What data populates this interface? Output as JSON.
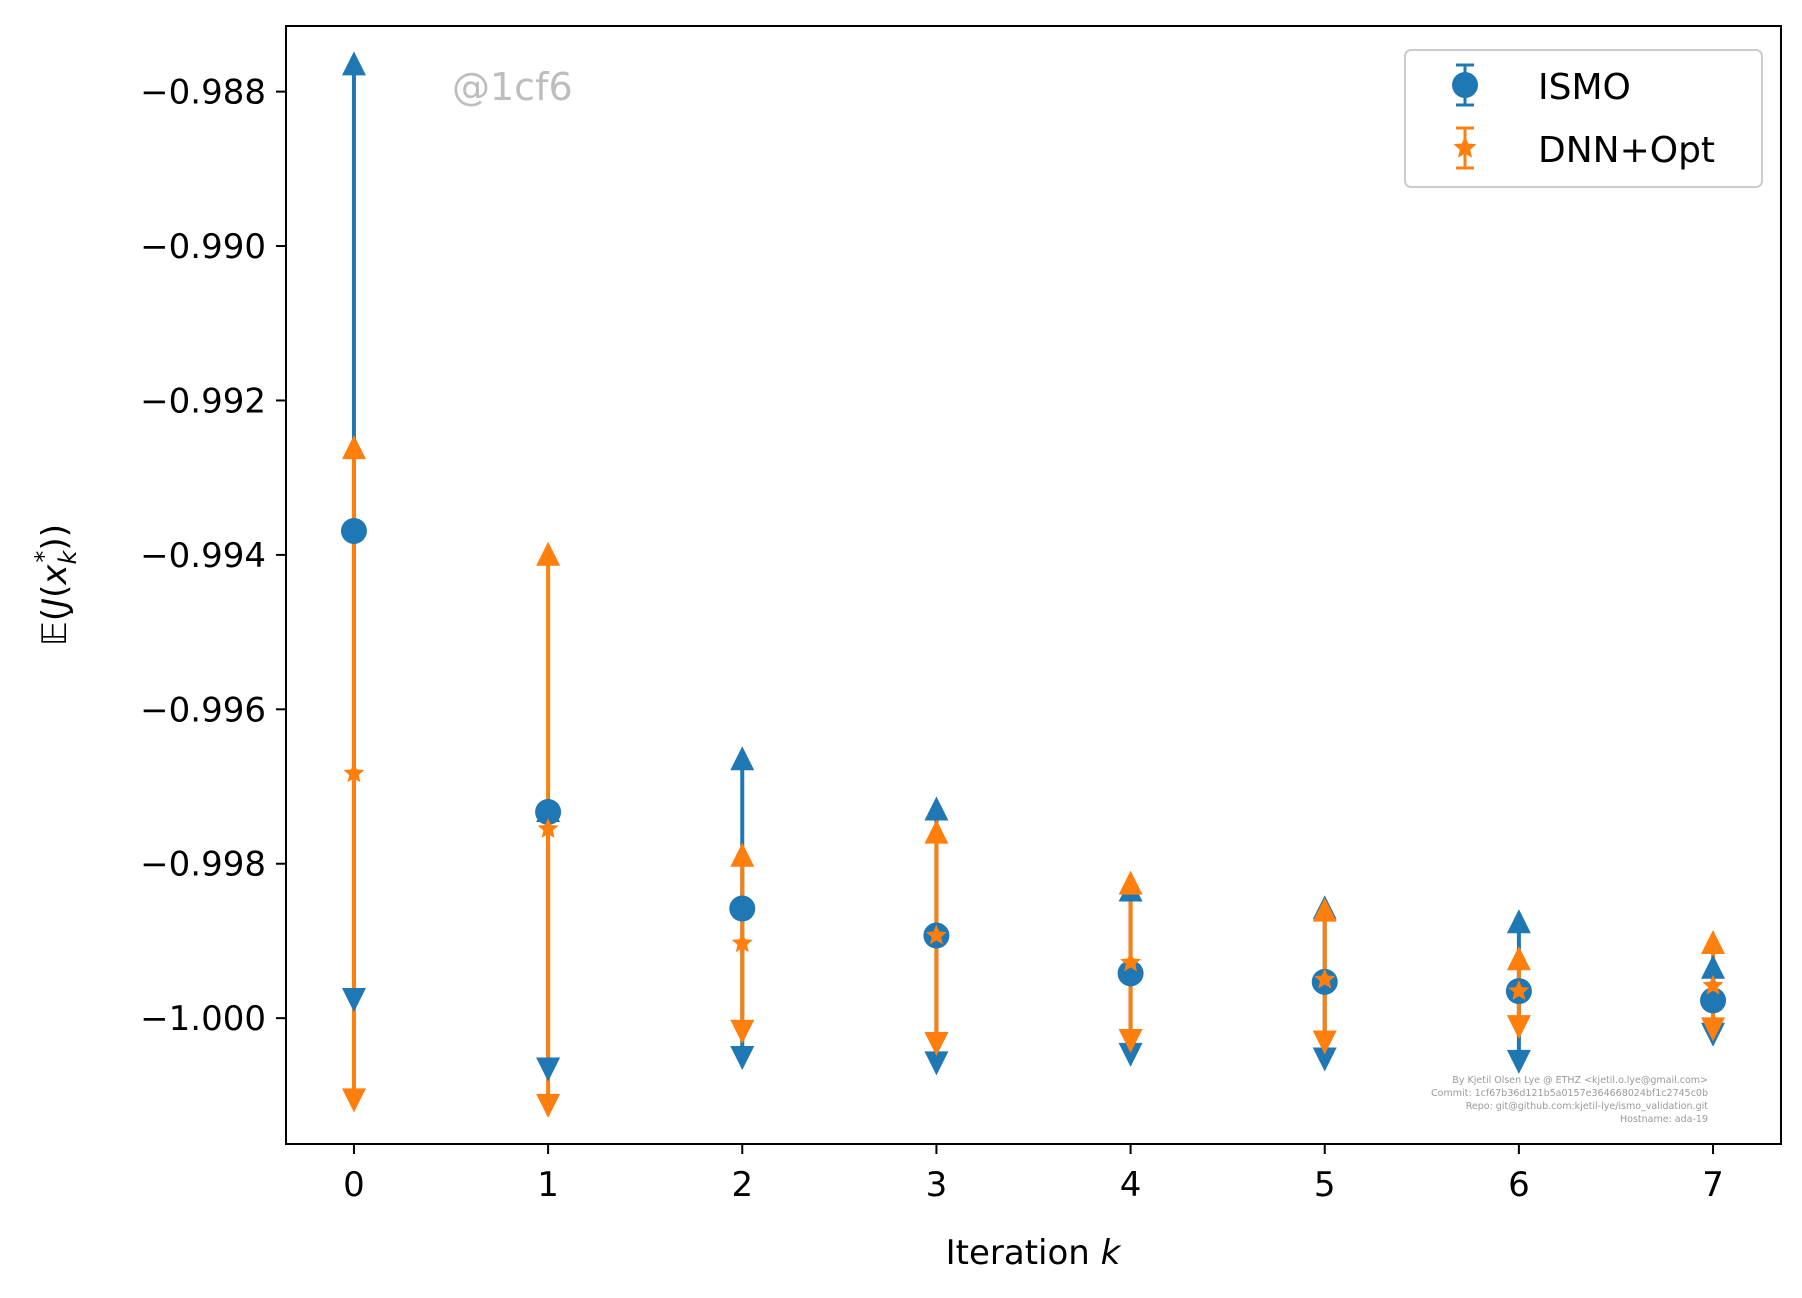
{
  "chart_data": {
    "type": "scatter",
    "xlabel": "Iteration k",
    "ylabel": "𝔼(J(x*k))",
    "x": [
      0,
      1,
      2,
      3,
      4,
      5,
      6,
      7
    ],
    "xticks": [
      "0",
      "1",
      "2",
      "3",
      "4",
      "5",
      "6",
      "7"
    ],
    "yticks": [
      -0.988,
      -0.99,
      -0.992,
      -0.994,
      -0.996,
      -0.998,
      -1.0
    ],
    "ytick_labels": [
      "−0.988",
      "−0.990",
      "−0.992",
      "−0.994",
      "−0.996",
      "−0.998",
      "−1.000"
    ],
    "xlim": [
      -0.35,
      7.35
    ],
    "ylim": [
      -1.00163,
      -0.98715
    ],
    "grid": false,
    "legend_position": "top-right",
    "series": [
      {
        "name": "ISMO",
        "color": "#1f77b4",
        "marker": "circle",
        "values": [
          -0.99369,
          -0.99733,
          -0.99858,
          -0.99893,
          -0.99942,
          -0.99953,
          -0.99965,
          -0.99977
        ],
        "upper": [
          -0.98765,
          -0.99732,
          -0.99665,
          -0.9973,
          -0.99835,
          -0.99858,
          -0.99876,
          -0.99935
        ],
        "lower": [
          -0.99975,
          -1.00065,
          -1.0005,
          -1.00057,
          -1.00046,
          -1.00052,
          -1.00055,
          -1.0002
        ]
      },
      {
        "name": "DNN+Opt",
        "color": "#ff7f0e",
        "marker": "star",
        "values": [
          -0.99683,
          -0.99755,
          -0.99903,
          -0.99893,
          -0.99928,
          -0.9995,
          -0.99965,
          -0.99958
        ],
        "upper": [
          -0.99262,
          -0.994,
          -0.9979,
          -0.9976,
          -0.99826,
          -0.99861,
          -0.99924,
          -0.99903
        ],
        "lower": [
          -1.00105,
          -1.00112,
          -1.00016,
          -1.00032,
          -1.00028,
          -1.0003,
          -1.0001,
          -1.00013
        ]
      }
    ]
  },
  "watermark": "@1cf6",
  "credits": [
    "By Kjetil Olsen Lye @ ETHZ <kjetil.o.lye@gmail.com>",
    "Commit: 1cf67b36d121b5a0157e364668024bf1c2745c0b",
    "Repo: git@github.com:kjetil-lye/ismo_validation.git",
    "Hostname: ada-19"
  ]
}
